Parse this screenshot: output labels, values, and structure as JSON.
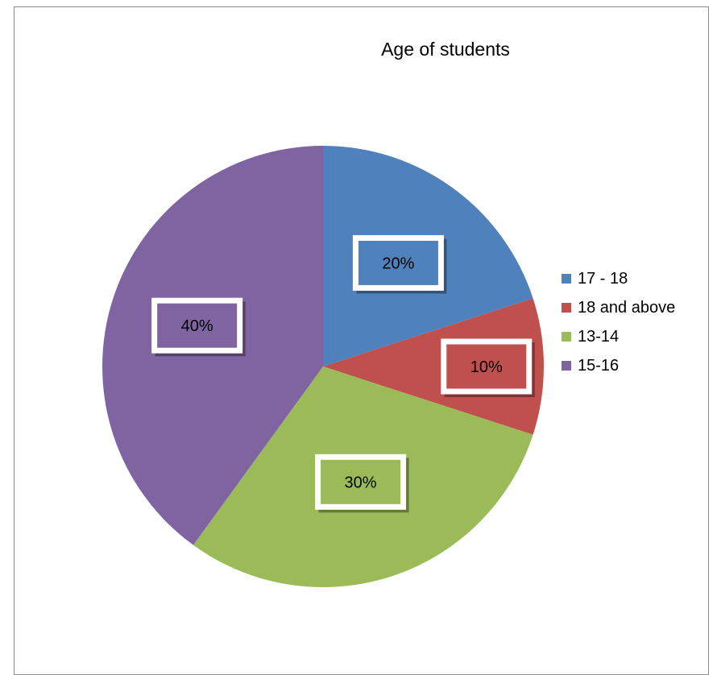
{
  "chart_data": {
    "type": "pie",
    "title": "Age of students",
    "slices": [
      {
        "label": "17 - 18",
        "value": 20,
        "data_label": "20%",
        "color": "#4f81bd"
      },
      {
        "label": "18 and above",
        "value": 10,
        "data_label": "10%",
        "color": "#c0504d"
      },
      {
        "label": "13-14",
        "value": 30,
        "data_label": "30%",
        "color": "#9bbb59"
      },
      {
        "label": "15-16",
        "value": 40,
        "data_label": "40%",
        "color": "#8064a2"
      }
    ],
    "legend_position": "right",
    "data_label_style": "boxed"
  }
}
